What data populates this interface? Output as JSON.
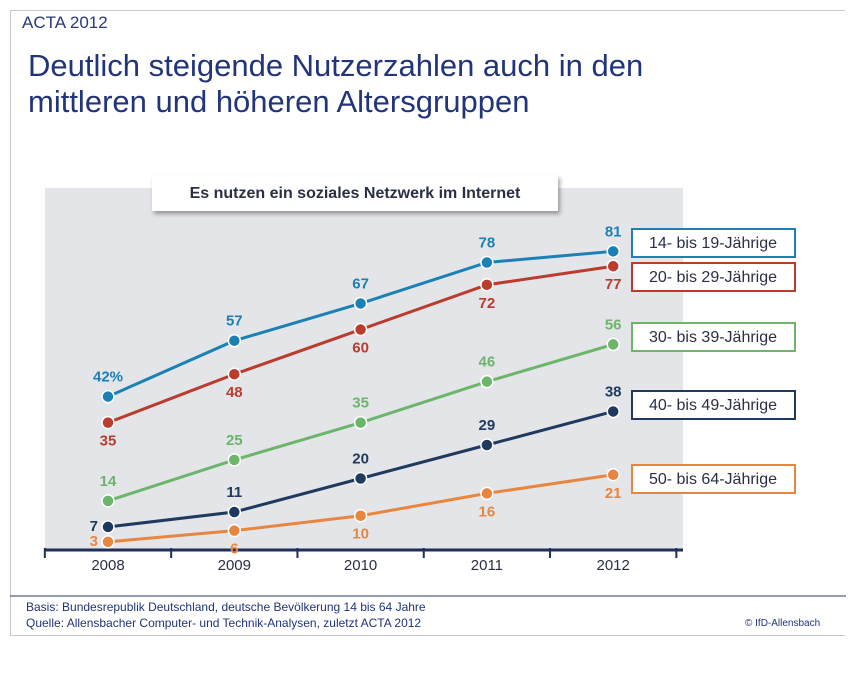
{
  "header": "ACTA 2012",
  "chart_data": {
    "type": "line",
    "title": "Deutlich steigende Nutzerzahlen auch in den mittleren und höheren Altersgruppen",
    "subtitle": "Es nutzen ein soziales Netzwerk im Internet",
    "categories": [
      "2008",
      "2009",
      "2010",
      "2011",
      "2012"
    ],
    "series": [
      {
        "name": "14- bis 19-Jährige",
        "color": "#1b80b4",
        "values": [
          42,
          57,
          67,
          78,
          81
        ],
        "value_labels": [
          "42%",
          "57",
          "67",
          "78",
          "81"
        ]
      },
      {
        "name": "20- bis 29-Jährige",
        "color": "#bb3b2c",
        "values": [
          35,
          48,
          60,
          72,
          77
        ]
      },
      {
        "name": "30- bis 39-Jährige",
        "color": "#6cb56a",
        "values": [
          14,
          25,
          35,
          46,
          56
        ]
      },
      {
        "name": "40- bis 49-Jährige",
        "color": "#1f3a5e",
        "values": [
          7,
          11,
          20,
          29,
          38
        ]
      },
      {
        "name": "50- bis 64-Jährige",
        "color": "#e8863f",
        "values": [
          3,
          6,
          10,
          16,
          21
        ]
      }
    ],
    "ylim": [
      0,
      98
    ]
  },
  "footer": {
    "basis": "Basis: Bundesrepublik Deutschland, deutsche Bevölkerung 14 bis 64 Jahre",
    "source": "Quelle: Allensbacher Computer- und Technik-Analysen, zuletzt ACTA 2012",
    "credit": "© IfD-Allensbach"
  }
}
